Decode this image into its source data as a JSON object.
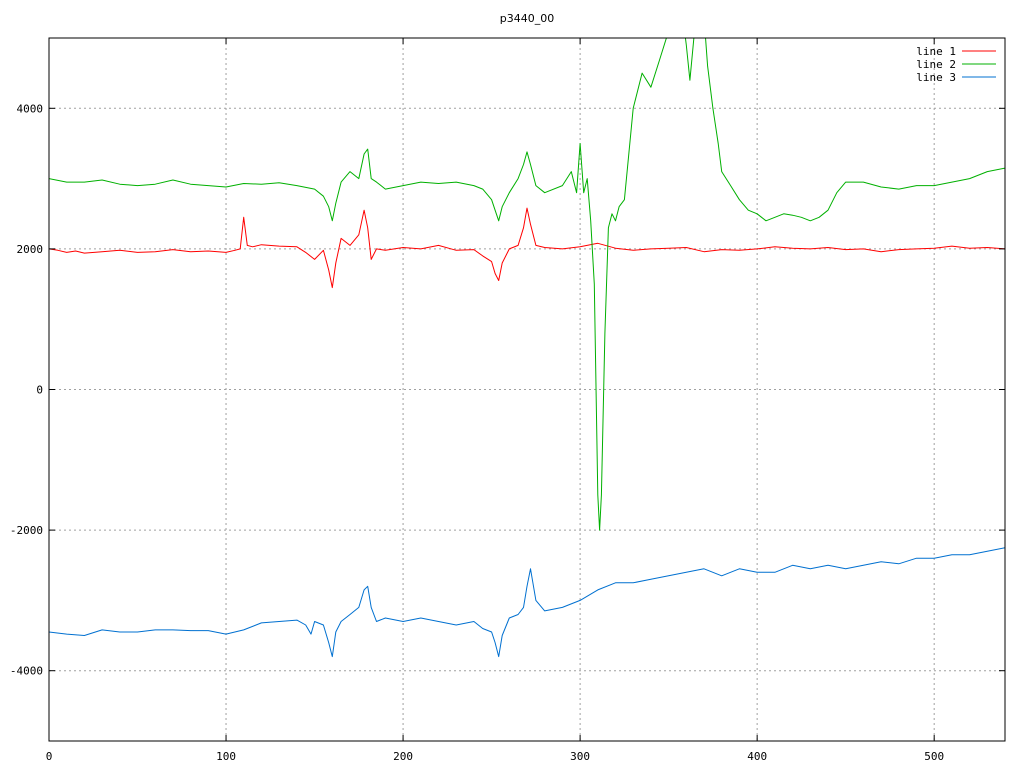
{
  "chart_data": {
    "type": "line",
    "title": "p3440_00",
    "xlabel": "",
    "ylabel": "",
    "xlim": [
      0,
      540
    ],
    "ylim": [
      -5000,
      5000
    ],
    "x_ticks": [
      0,
      100,
      200,
      300,
      400,
      500
    ],
    "y_ticks": [
      -4000,
      -2000,
      0,
      2000,
      4000
    ],
    "x_tick_labels": [
      "0",
      "100",
      "200",
      "300",
      "400",
      "500"
    ],
    "y_tick_labels": [
      "-4000",
      "-2000",
      "0",
      "2000",
      "4000"
    ],
    "grid": true,
    "legend_position": "top-right",
    "series": [
      {
        "name": "line 1",
        "color": "#ff0000",
        "x": [
          0,
          5,
          10,
          15,
          20,
          30,
          40,
          50,
          60,
          70,
          80,
          90,
          100,
          105,
          108,
          110,
          112,
          115,
          120,
          130,
          140,
          145,
          150,
          155,
          158,
          160,
          162,
          165,
          170,
          175,
          178,
          180,
          182,
          185,
          190,
          200,
          210,
          220,
          230,
          240,
          245,
          250,
          252,
          254,
          256,
          260,
          265,
          268,
          270,
          272,
          275,
          280,
          290,
          300,
          310,
          320,
          330,
          340,
          350,
          360,
          370,
          380,
          390,
          400,
          410,
          420,
          430,
          440,
          450,
          460,
          470,
          480,
          490,
          500,
          510,
          520,
          530,
          540
        ],
        "y": [
          2000,
          1980,
          1950,
          1970,
          1940,
          1960,
          1980,
          1950,
          1960,
          1990,
          1960,
          1970,
          1950,
          1980,
          2000,
          2450,
          2050,
          2030,
          2060,
          2040,
          2030,
          1950,
          1850,
          1980,
          1700,
          1450,
          1800,
          2150,
          2050,
          2200,
          2550,
          2300,
          1850,
          2000,
          1980,
          2020,
          2000,
          2050,
          1980,
          1990,
          1900,
          1820,
          1650,
          1550,
          1800,
          2000,
          2050,
          2300,
          2580,
          2350,
          2050,
          2020,
          2000,
          2030,
          2080,
          2010,
          1980,
          2000,
          2010,
          2020,
          1960,
          1990,
          1980,
          2000,
          2030,
          2010,
          2000,
          2020,
          1990,
          2000,
          1960,
          1990,
          2000,
          2010,
          2040,
          2010,
          2020,
          2000
        ]
      },
      {
        "name": "line 2",
        "color": "#00b000",
        "x": [
          0,
          10,
          20,
          30,
          40,
          50,
          60,
          70,
          80,
          90,
          100,
          110,
          120,
          130,
          140,
          150,
          155,
          158,
          160,
          162,
          165,
          170,
          175,
          178,
          180,
          182,
          185,
          190,
          200,
          210,
          220,
          230,
          240,
          245,
          250,
          252,
          254,
          256,
          260,
          265,
          268,
          270,
          272,
          275,
          280,
          290,
          295,
          298,
          300,
          302,
          304,
          306,
          308,
          310,
          311,
          312,
          314,
          316,
          318,
          320,
          322,
          325,
          330,
          335,
          340,
          345,
          350,
          355,
          358,
          360,
          362,
          365,
          368,
          370,
          372,
          375,
          378,
          380,
          385,
          390,
          395,
          400,
          405,
          410,
          415,
          420,
          425,
          430,
          435,
          440,
          445,
          450,
          460,
          470,
          480,
          490,
          500,
          510,
          520,
          530,
          540
        ],
        "y": [
          3000,
          2950,
          2950,
          2980,
          2920,
          2900,
          2920,
          2980,
          2920,
          2900,
          2880,
          2930,
          2920,
          2940,
          2900,
          2850,
          2750,
          2600,
          2400,
          2650,
          2950,
          3100,
          3000,
          3350,
          3420,
          3000,
          2950,
          2850,
          2900,
          2950,
          2930,
          2950,
          2900,
          2850,
          2700,
          2550,
          2400,
          2600,
          2800,
          3000,
          3200,
          3380,
          3200,
          2900,
          2800,
          2900,
          3100,
          2800,
          3500,
          2800,
          3000,
          2400,
          1500,
          -1500,
          -2000,
          -1500,
          800,
          2300,
          2500,
          2400,
          2600,
          2700,
          4000,
          4500,
          4300,
          4700,
          5100,
          5300,
          5300,
          4900,
          4400,
          5200,
          5500,
          5300,
          4600,
          4000,
          3500,
          3100,
          2900,
          2700,
          2550,
          2500,
          2400,
          2450,
          2500,
          2480,
          2450,
          2400,
          2450,
          2550,
          2800,
          2950,
          2950,
          2880,
          2850,
          2900,
          2900,
          2950,
          3000,
          3100,
          3150
        ]
      },
      {
        "name": "line 3",
        "color": "#0070d0",
        "x": [
          0,
          10,
          20,
          30,
          40,
          50,
          60,
          70,
          80,
          90,
          100,
          110,
          120,
          130,
          140,
          145,
          148,
          150,
          155,
          158,
          160,
          162,
          165,
          170,
          175,
          178,
          180,
          182,
          185,
          190,
          200,
          210,
          220,
          230,
          240,
          245,
          250,
          252,
          254,
          256,
          260,
          265,
          268,
          270,
          272,
          275,
          280,
          290,
          300,
          310,
          320,
          330,
          340,
          350,
          360,
          370,
          380,
          390,
          400,
          410,
          420,
          430,
          440,
          450,
          460,
          470,
          480,
          490,
          500,
          510,
          520,
          530,
          540
        ],
        "y": [
          -3450,
          -3480,
          -3500,
          -3420,
          -3450,
          -3450,
          -3420,
          -3420,
          -3430,
          -3430,
          -3480,
          -3420,
          -3320,
          -3300,
          -3280,
          -3350,
          -3480,
          -3300,
          -3350,
          -3600,
          -3800,
          -3450,
          -3300,
          -3200,
          -3100,
          -2850,
          -2800,
          -3100,
          -3300,
          -3250,
          -3300,
          -3250,
          -3300,
          -3350,
          -3300,
          -3400,
          -3450,
          -3600,
          -3800,
          -3500,
          -3250,
          -3200,
          -3100,
          -2800,
          -2550,
          -3000,
          -3150,
          -3100,
          -3000,
          -2850,
          -2750,
          -2750,
          -2700,
          -2650,
          -2600,
          -2550,
          -2650,
          -2550,
          -2600,
          -2600,
          -2500,
          -2550,
          -2500,
          -2550,
          -2500,
          -2450,
          -2480,
          -2400,
          -2400,
          -2350,
          -2350,
          -2300,
          -2250
        ]
      }
    ]
  }
}
